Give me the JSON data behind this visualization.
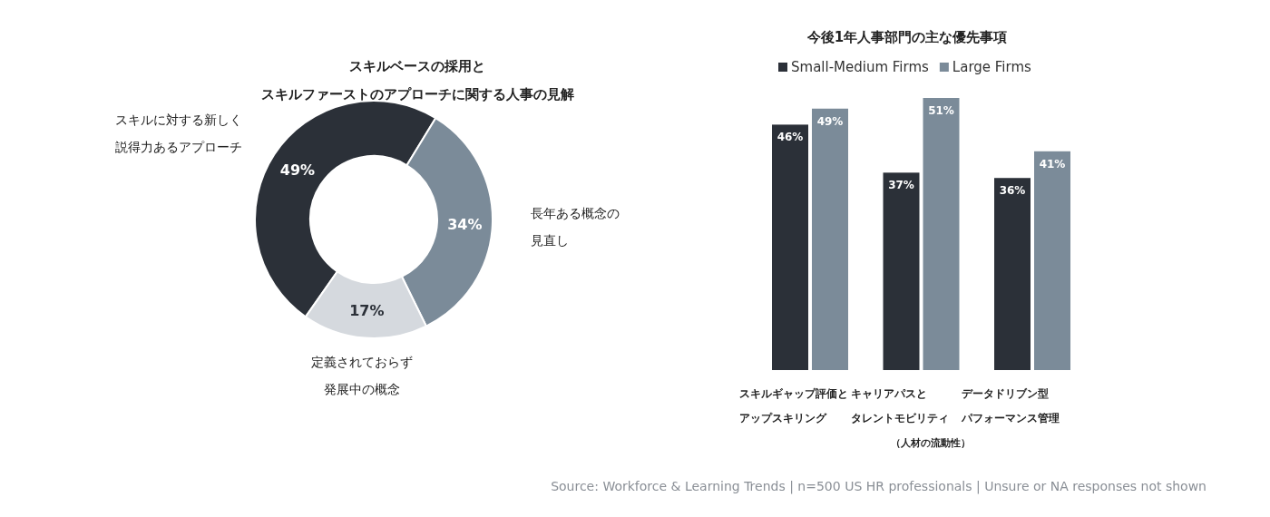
{
  "chart_data": [
    {
      "type": "donut",
      "title": "スキルベースの採用とスキルファーストのアプローチに関する人事の見解",
      "categories": [
        "スキルに対する新しく説得力あるアプローチ",
        "長年ある概念の見直し",
        "定義されておらず発展中の概念"
      ],
      "values": [
        49,
        34,
        17
      ],
      "colors": [
        "#2b3038",
        "#7b8b99",
        "#d5d9de"
      ],
      "value_labels": [
        "49%",
        "34%",
        "17%"
      ]
    },
    {
      "type": "bar",
      "title": "今後1年人事部門の主な優先事項",
      "categories": [
        "スキルギャップ評価とアップスキリング",
        "キャリアパスとタレントモビリティ（人材の流動性）",
        "データドリブン型パフォーマンス管理"
      ],
      "series": [
        {
          "name": "Small-Medium Firms",
          "color": "#2b3038",
          "values": [
            46,
            37,
            36
          ],
          "value_labels": [
            "46%",
            "37%",
            "36%"
          ]
        },
        {
          "name": "Large Firms",
          "color": "#7b8b99",
          "values": [
            49,
            51,
            41
          ],
          "value_labels": [
            "49%",
            "51%",
            "41%"
          ]
        }
      ],
      "legend": "top left",
      "annotations": [
        "Source: Workforce & Learning Trends | n=500 US HR professionals | Unsure or NA responses not shown"
      ]
    }
  ]
}
